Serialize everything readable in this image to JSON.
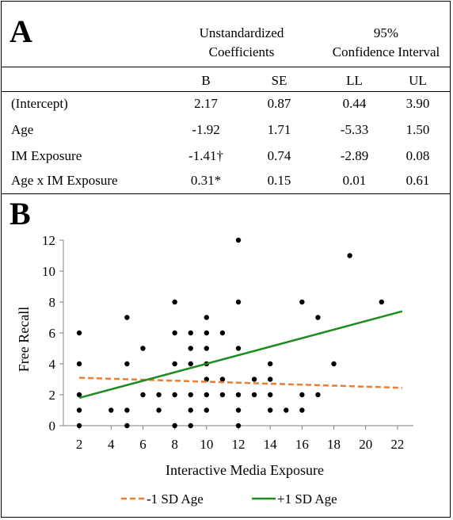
{
  "panel_a": {
    "label": "A",
    "header": {
      "group1": [
        "Unstandardized",
        "Coefficients"
      ],
      "group2": [
        "95%",
        "Confidence Interval"
      ],
      "columns": [
        "B",
        "SE",
        "LL",
        "UL"
      ]
    },
    "rows": [
      {
        "name": "(Intercept)",
        "B": "2.17",
        "SE": "0.87",
        "LL": "0.44",
        "UL": "3.90"
      },
      {
        "name": "Age",
        "B": "-1.92",
        "SE": "1.71",
        "LL": "-5.33",
        "UL": "1.50"
      },
      {
        "name": "IM Exposure",
        "B": "-1.41†",
        "SE": "0.74",
        "LL": "-2.89",
        "UL": "0.08"
      },
      {
        "name": "Age x IM Exposure",
        "B": "0.31*",
        "SE": "0.15",
        "LL": "0.01",
        "UL": "0.61"
      }
    ]
  },
  "panel_b": {
    "label": "B"
  },
  "chart_data": {
    "type": "scatter",
    "xlabel": "Interactive Media Exposure",
    "ylabel": "Free Recall",
    "xlim": [
      1,
      23
    ],
    "ylim": [
      0,
      12
    ],
    "xticks": [
      2,
      4,
      6,
      8,
      10,
      12,
      14,
      16,
      18,
      20,
      22
    ],
    "yticks": [
      0,
      2,
      4,
      6,
      8,
      10,
      12
    ],
    "points": [
      [
        2,
        6
      ],
      [
        2,
        4
      ],
      [
        2,
        2
      ],
      [
        2,
        1
      ],
      [
        2,
        0
      ],
      [
        4,
        1
      ],
      [
        5,
        7
      ],
      [
        5,
        4
      ],
      [
        5,
        1
      ],
      [
        5,
        0
      ],
      [
        6,
        5
      ],
      [
        6,
        2
      ],
      [
        7,
        2
      ],
      [
        7,
        1
      ],
      [
        8,
        8
      ],
      [
        8,
        6
      ],
      [
        8,
        4
      ],
      [
        8,
        2
      ],
      [
        8,
        0
      ],
      [
        9,
        6
      ],
      [
        9,
        5
      ],
      [
        9,
        4
      ],
      [
        9,
        2
      ],
      [
        9,
        1
      ],
      [
        9,
        0
      ],
      [
        10,
        7
      ],
      [
        10,
        6
      ],
      [
        10,
        5
      ],
      [
        10,
        4
      ],
      [
        10,
        3
      ],
      [
        10,
        2
      ],
      [
        10,
        1
      ],
      [
        11,
        6
      ],
      [
        11,
        3
      ],
      [
        11,
        2
      ],
      [
        12,
        12
      ],
      [
        12,
        8
      ],
      [
        12,
        5
      ],
      [
        12,
        2
      ],
      [
        12,
        1
      ],
      [
        12,
        0
      ],
      [
        13,
        3
      ],
      [
        13,
        2
      ],
      [
        14,
        4
      ],
      [
        14,
        3
      ],
      [
        14,
        2
      ],
      [
        14,
        1
      ],
      [
        15,
        1
      ],
      [
        16,
        8
      ],
      [
        16,
        2
      ],
      [
        16,
        1
      ],
      [
        17,
        7
      ],
      [
        17,
        2
      ],
      [
        18,
        4
      ],
      [
        19,
        11
      ],
      [
        21,
        8
      ]
    ],
    "series": [
      {
        "name": "-1 SD Age",
        "x": [
          2,
          22.3
        ],
        "y": [
          3.1,
          2.45
        ],
        "color": "#ED7D31",
        "style": "dashed"
      },
      {
        "name": "+1 SD Age",
        "x": [
          2,
          22.3
        ],
        "y": [
          1.8,
          7.4
        ],
        "color": "#1E8C1E",
        "style": "solid"
      }
    ],
    "legend": "bottom"
  }
}
